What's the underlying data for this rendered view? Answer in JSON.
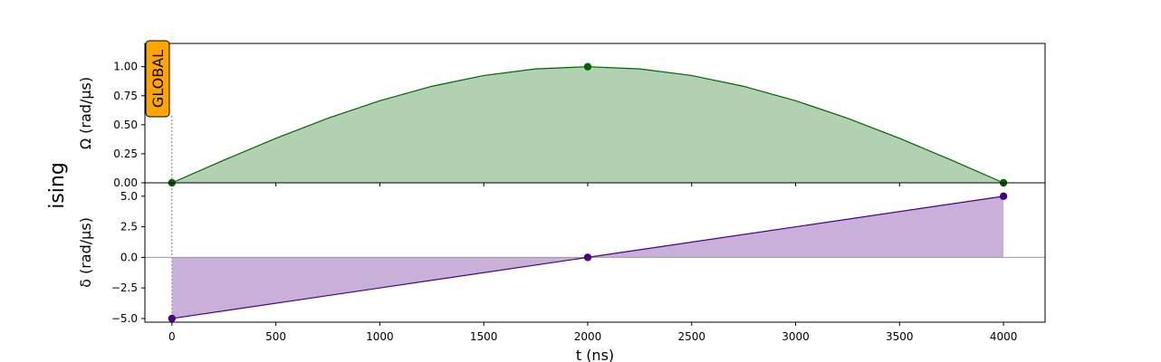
{
  "row_label": "ising",
  "chart_data": [
    {
      "type": "area",
      "badge": "GLOBAL",
      "ylabel": "Ω (rad/µs)",
      "ylim": [
        0,
        1.2
      ],
      "xlim": [
        -130,
        4200
      ],
      "yticks": [
        0.0,
        0.25,
        0.5,
        0.75,
        1.0
      ],
      "ytick_labels": [
        "0.00",
        "0.25",
        "0.50",
        "0.75",
        "1.00"
      ],
      "xticks": [
        0,
        500,
        1000,
        1500,
        2000,
        2500,
        3000,
        3500,
        4000
      ],
      "x": [
        0,
        250,
        500,
        750,
        1000,
        1250,
        1500,
        1750,
        2000,
        2250,
        2500,
        2750,
        3000,
        3250,
        3500,
        3750,
        4000
      ],
      "y": [
        0,
        0.195,
        0.383,
        0.556,
        0.707,
        0.831,
        0.924,
        0.981,
        1.0,
        0.981,
        0.924,
        0.831,
        0.707,
        0.556,
        0.383,
        0.195,
        0
      ],
      "markers": [
        {
          "x": 0,
          "y": 0
        },
        {
          "x": 2000,
          "y": 1.0
        },
        {
          "x": 4000,
          "y": 0
        }
      ],
      "line_color": "#006400",
      "fill_color": "#b2d1b2",
      "grid": false
    },
    {
      "type": "area",
      "ylabel": "δ (rad/µs)",
      "xlabel": "t (ns)",
      "ylim": [
        -5.3,
        6.1
      ],
      "xlim": [
        -130,
        4200
      ],
      "yticks": [
        -5.0,
        -2.5,
        0.0,
        2.5,
        5.0
      ],
      "ytick_labels": [
        "−5.0",
        "−2.5",
        "0.0",
        "2.5",
        "5.0"
      ],
      "xticks": [
        0,
        500,
        1000,
        1500,
        2000,
        2500,
        3000,
        3500,
        4000
      ],
      "xtick_labels": [
        "0",
        "500",
        "1000",
        "1500",
        "2000",
        "2500",
        "3000",
        "3500",
        "4000"
      ],
      "x": [
        0,
        2000,
        4000
      ],
      "y": [
        -5.0,
        0.0,
        5.0
      ],
      "markers": [
        {
          "x": 0,
          "y": -5.0
        },
        {
          "x": 2000,
          "y": 0.0
        },
        {
          "x": 4000,
          "y": 5.0
        }
      ],
      "line_color": "#4b0082",
      "fill_color": "#c8b0d9",
      "grid": false
    }
  ],
  "colors": {
    "badge_fill": "#ffa500",
    "zero_line": "#999999",
    "axes": "#000000"
  }
}
